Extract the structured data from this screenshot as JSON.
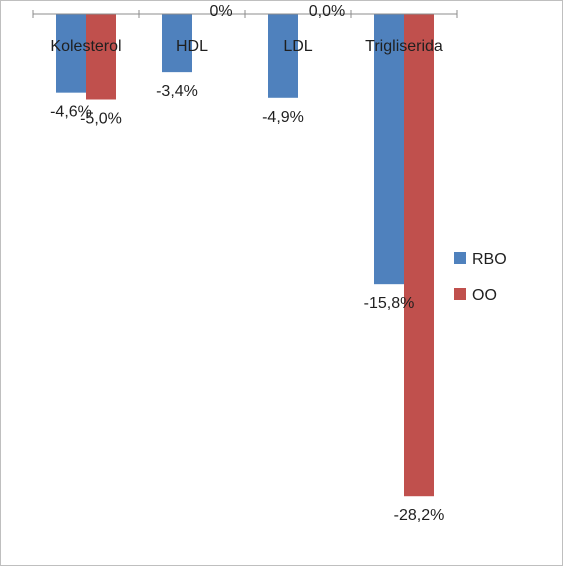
{
  "chart_data": {
    "type": "bar",
    "categories": [
      "Kolesterol",
      "HDL",
      "LDL",
      "Trigliserida"
    ],
    "series": [
      {
        "name": "RBO",
        "values": [
          -4.6,
          -3.4,
          -4.9,
          -15.8
        ],
        "labels": [
          "-4,6%",
          "-3,4%",
          "-4,9%",
          "-15,8%"
        ],
        "color": "#4F81BD"
      },
      {
        "name": "OO",
        "values": [
          -5.0,
          0,
          0,
          -28.2
        ],
        "labels": [
          "-5,0%",
          "0%",
          "0,0%",
          "-28,2%"
        ],
        "color": "#C0504D"
      }
    ],
    "ylim": [
      -30,
      0
    ],
    "grid": false,
    "legend_position": "right",
    "title": "",
    "xlabel": "",
    "ylabel": ""
  }
}
